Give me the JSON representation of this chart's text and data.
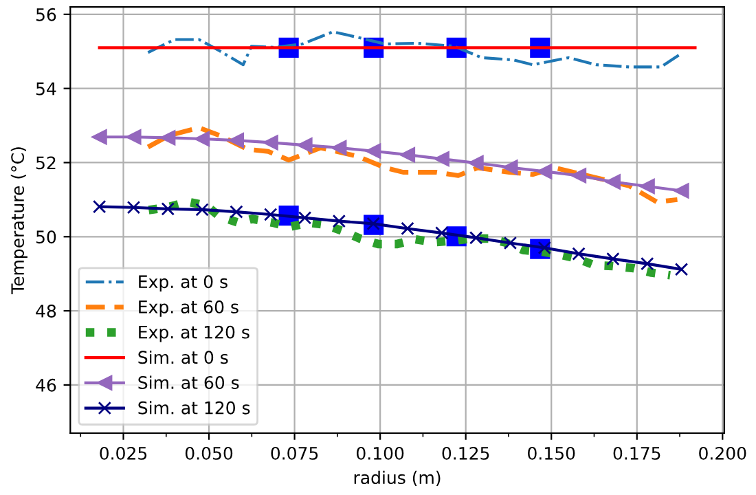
{
  "chart_data": {
    "type": "line",
    "xlabel": "radius (m)",
    "ylabel": "Temperature (°C)",
    "xlim": [
      0.0095,
      0.2005
    ],
    "ylim": [
      44.7,
      56.2
    ],
    "xticks": [
      {
        "value": 0.0125,
        "label": null
      },
      0.025,
      {
        "value": 0.0375,
        "label": null
      },
      {
        "value": 0.05,
        "label": "0.050"
      },
      {
        "value": 0.0625,
        "label": null
      },
      0.075,
      {
        "value": 0.0875,
        "label": null
      },
      {
        "value": 0.1,
        "label": "0.100"
      },
      {
        "value": 0.1125,
        "label": null
      },
      0.125,
      {
        "value": 0.1375,
        "label": null
      },
      {
        "value": 0.15,
        "label": "0.150"
      },
      {
        "value": 0.1625,
        "label": null
      },
      0.175,
      {
        "value": 0.1875,
        "label": null
      },
      {
        "value": 0.2,
        "label": "0.200"
      }
    ],
    "yticks": [
      46,
      48,
      50,
      52,
      54,
      56
    ],
    "grid": true,
    "legend": "bottom left",
    "series": [
      {
        "name": "Exp. at 0 s",
        "color": "#1f77b4",
        "line_style": "dashdot",
        "marker": "none",
        "x": [
          0.0322,
          0.0399,
          0.0471,
          0.0532,
          0.06,
          0.0624,
          0.0693,
          0.0773,
          0.0862,
          0.0934,
          0.1015,
          0.1108,
          0.1216,
          0.1297,
          0.1389,
          0.1446,
          0.155,
          0.1631,
          0.1728,
          0.182,
          0.1881
        ],
        "values": [
          54.97,
          55.32,
          55.32,
          55.01,
          54.64,
          55.14,
          55.11,
          55.2,
          55.53,
          55.38,
          55.2,
          55.22,
          55.14,
          54.83,
          54.77,
          54.64,
          54.83,
          54.64,
          54.58,
          54.58,
          54.95
        ]
      },
      {
        "name": "Exp. at 60 s",
        "color": "#ff7f0e",
        "line_style": "dashed",
        "marker": "none",
        "x": [
          0.0322,
          0.0383,
          0.0471,
          0.0532,
          0.0612,
          0.0673,
          0.0733,
          0.0826,
          0.0934,
          0.1015,
          0.1067,
          0.1164,
          0.1228,
          0.1285,
          0.1377,
          0.1446,
          0.151,
          0.1591,
          0.1728,
          0.1808,
          0.1868
        ],
        "values": [
          52.42,
          52.73,
          52.94,
          52.73,
          52.36,
          52.3,
          52.07,
          52.4,
          52.17,
          51.86,
          51.74,
          51.74,
          51.65,
          51.86,
          51.74,
          51.68,
          51.86,
          51.68,
          51.37,
          50.94,
          51.0
        ]
      },
      {
        "name": "Exp. at 120 s",
        "color": "#2ca02c",
        "line_style": "dotted",
        "marker": "none",
        "x": [
          0.0324,
          0.0378,
          0.0438,
          0.0492,
          0.0532,
          0.0586,
          0.0626,
          0.0686,
          0.0733,
          0.0793,
          0.0841,
          0.0894,
          0.0941,
          0.0995,
          0.1048,
          0.1102,
          0.1156,
          0.1216,
          0.1263,
          0.1317,
          0.1364,
          0.1418,
          0.1471,
          0.1525,
          0.1579,
          0.1626,
          0.1679,
          0.174,
          0.1793,
          0.1847
        ],
        "values": [
          50.72,
          50.79,
          50.94,
          50.84,
          50.54,
          50.38,
          50.48,
          50.38,
          50.26,
          50.38,
          50.32,
          50.14,
          49.95,
          49.8,
          49.8,
          49.93,
          49.85,
          49.89,
          49.95,
          49.95,
          49.85,
          49.64,
          49.6,
          49.52,
          49.4,
          49.23,
          49.21,
          49.15,
          49.03,
          48.96
        ]
      },
      {
        "name": "Sim. at 0 s",
        "color": "#ff0000",
        "line_style": "solid",
        "marker": "none",
        "x": [
          0.018,
          0.192
        ],
        "values": [
          55.1,
          55.1
        ]
      },
      {
        "name": "Sim. at 60 s",
        "color": "#9467bd",
        "line_style": "solid",
        "marker": "triangle",
        "x": [
          0.018,
          0.028,
          0.038,
          0.048,
          0.058,
          0.068,
          0.078,
          0.088,
          0.098,
          0.108,
          0.118,
          0.128,
          0.138,
          0.148,
          0.158,
          0.168,
          0.178,
          0.188
        ],
        "values": [
          52.69,
          52.69,
          52.67,
          52.64,
          52.6,
          52.54,
          52.47,
          52.4,
          52.31,
          52.21,
          52.1,
          51.99,
          51.87,
          51.76,
          51.65,
          51.48,
          51.36,
          51.24
        ]
      },
      {
        "name": "Sim. at 120 s",
        "color": "#000080",
        "line_style": "solid",
        "marker": "cross",
        "x": [
          0.018,
          0.028,
          0.038,
          0.048,
          0.058,
          0.068,
          0.078,
          0.088,
          0.098,
          0.108,
          0.118,
          0.128,
          0.138,
          0.148,
          0.158,
          0.168,
          0.178,
          0.188
        ],
        "values": [
          50.81,
          50.79,
          50.75,
          50.73,
          50.67,
          50.6,
          50.51,
          50.42,
          50.35,
          50.22,
          50.1,
          49.97,
          49.83,
          49.7,
          49.54,
          49.4,
          49.27,
          49.12
        ]
      },
      {
        "type": "scatter",
        "color": "#0000ff",
        "marker": "square",
        "x": [
          0.0733,
          0.0981,
          0.1223,
          0.1467,
          0.0733,
          0.0981,
          0.1223,
          0.1467
        ],
        "values": [
          55.1,
          55.1,
          55.1,
          55.1,
          50.57,
          50.32,
          50.01,
          49.67
        ]
      }
    ]
  }
}
